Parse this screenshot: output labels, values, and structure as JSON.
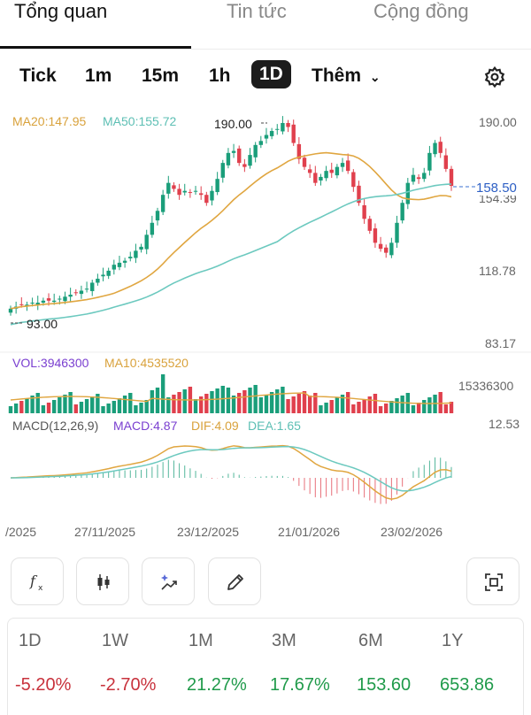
{
  "tabs": [
    "Tổng quan",
    "Tin tức",
    "Cộng đồng"
  ],
  "timeframes": [
    "Tick",
    "1m",
    "15m",
    "1h",
    "1D"
  ],
  "more_label": "Thêm",
  "legend": {
    "ma20": "MA20:147.95",
    "ma50": "MA50:155.72",
    "vol": "VOL:3946300",
    "ma10": "MA10:4535520",
    "macd_params": "MACD(12,26,9)",
    "macd": "MACD:4.87",
    "dif": "DIF:4.09",
    "dea": "DEA:1.65"
  },
  "price_axis": [
    "190.00",
    "154.39",
    "118.78",
    "83.17"
  ],
  "current_price": "158.50",
  "high_label": "190.00",
  "low_label": "93.00",
  "volume_axis": "15336300",
  "macd_axis": "12.53",
  "date_axis": [
    "/2025",
    "27/11/2025",
    "23/12/2025",
    "21/01/2026",
    "23/02/2026"
  ],
  "colors": {
    "up": "#1a9e7a",
    "down": "#e0404d",
    "ma20": "#e0a640",
    "ma50": "#6cc9bf",
    "price_line": "#3a6fd0"
  },
  "toolbar_icons": [
    "function-icon",
    "candlestick-icon",
    "magic-chart-icon",
    "pencil-icon",
    "screenshot-icon"
  ],
  "performance": [
    {
      "period": "1D",
      "value": "-5.20%"
    },
    {
      "period": "1W",
      "value": "-2.70%"
    },
    {
      "period": "1M",
      "value": "21.27%"
    },
    {
      "period": "3M",
      "value": "17.67%"
    },
    {
      "period": "6M",
      "value": "153.60"
    },
    {
      "period": "1Y",
      "value": "653.86"
    }
  ],
  "chart_data": {
    "type": "candlestick",
    "closes": [
      97,
      98,
      99,
      99,
      100,
      100,
      101,
      101,
      101,
      102,
      103,
      104,
      105,
      106,
      107,
      110,
      112,
      114,
      116,
      119,
      120,
      121,
      123,
      126,
      128,
      134,
      140,
      146,
      154,
      160,
      157,
      154,
      156,
      155,
      156,
      154,
      150,
      156,
      162,
      170,
      175,
      176,
      170,
      168,
      174,
      179,
      181,
      184,
      186,
      187,
      190,
      188,
      180,
      172,
      168,
      165,
      160,
      163,
      166,
      165,
      168,
      170,
      166,
      158,
      150,
      142,
      136,
      130,
      127,
      125,
      130,
      140,
      150,
      160,
      164,
      162,
      165,
      175,
      180,
      175,
      167,
      158.5
    ],
    "ylim": [
      83.17,
      190.0
    ],
    "ma20_last": 147.95,
    "ma50_last": 155.72,
    "volume_last": 3946300,
    "volume_ma10": 4535520,
    "macd": 4.87,
    "dif": 4.09,
    "dea": 1.65
  }
}
